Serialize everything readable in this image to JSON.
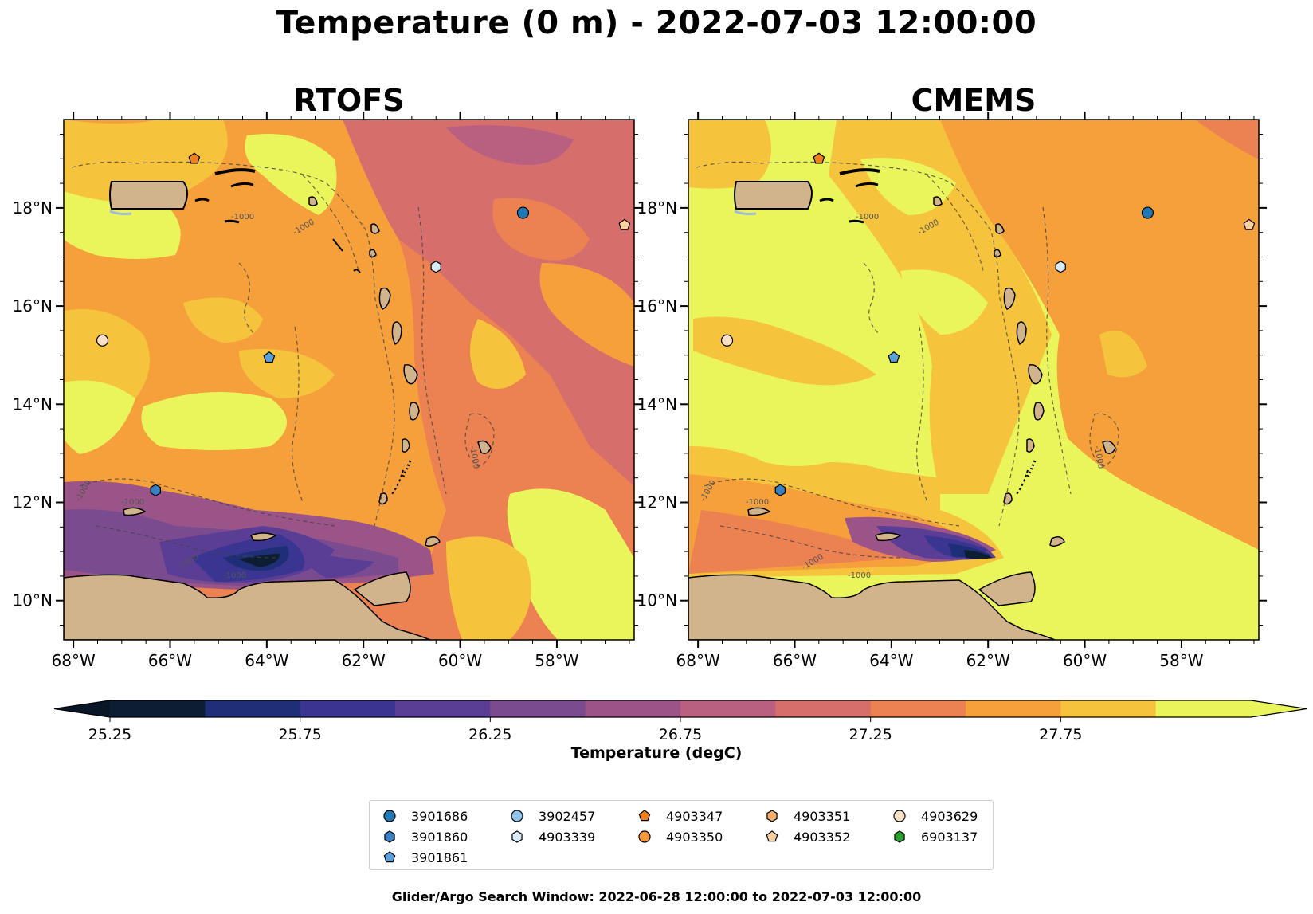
{
  "title": "Temperature (0 m) - 2022-07-03 12:00:00",
  "panels": [
    {
      "title": "RTOFS"
    },
    {
      "title": "CMEMS"
    }
  ],
  "axes": {
    "lon_ticks": [
      "68°W",
      "66°W",
      "64°W",
      "62°W",
      "60°W",
      "58°W"
    ],
    "lat_ticks": [
      "18°N",
      "16°N",
      "14°N",
      "12°N",
      "10°N"
    ],
    "lon_range": [
      -68.2,
      -56.4
    ],
    "lat_range": [
      9.2,
      19.8
    ]
  },
  "colorbar": {
    "label": "Temperature (degC)",
    "ticks": [
      "25.25",
      "25.75",
      "26.25",
      "26.75",
      "27.25",
      "27.75"
    ],
    "levels": [
      25.25,
      25.5,
      25.75,
      26.0,
      26.25,
      26.5,
      26.75,
      27.0,
      27.25,
      27.5,
      27.75,
      28.0
    ],
    "colors": [
      "#0d1e33",
      "#1f2f77",
      "#3a3591",
      "#5a3e96",
      "#7a4b8f",
      "#9a5487",
      "#b96080",
      "#d66f6c",
      "#ec8151",
      "#f6a03c",
      "#f6c43c",
      "#e9f55a"
    ],
    "extend_min_color": "#091627",
    "extend_max_color": "#e9f55a"
  },
  "contour_label": "-1000",
  "legend": {
    "items": [
      {
        "id": "3901686",
        "marker": "circle",
        "color": "#1f77b4",
        "lon": -58.7,
        "lat": 17.9
      },
      {
        "id": "3901860",
        "marker": "hexagon",
        "color": "#3a80c4",
        "lon": -66.3,
        "lat": 12.25
      },
      {
        "id": "3901861",
        "marker": "pentagon",
        "color": "#5aa0dc",
        "lon": -63.95,
        "lat": 14.95
      },
      {
        "id": "3902457",
        "marker": "circle",
        "color": "#8fc4ec",
        "lon": null,
        "lat": null
      },
      {
        "id": "4903339",
        "marker": "hexagon",
        "color": "#d6eaf8",
        "lon": -60.5,
        "lat": 16.8
      },
      {
        "id": "4903347",
        "marker": "pentagon",
        "color": "#f07f1e",
        "lon": -65.5,
        "lat": 19.0
      },
      {
        "id": "4903350",
        "marker": "circle",
        "color": "#f7983a",
        "lon": null,
        "lat": null
      },
      {
        "id": "4903351",
        "marker": "hexagon",
        "color": "#f5b070",
        "lon": null,
        "lat": null
      },
      {
        "id": "4903352",
        "marker": "pentagon",
        "color": "#fbcf9e",
        "lon": -56.6,
        "lat": 17.65
      },
      {
        "id": "4903629",
        "marker": "circle",
        "color": "#fbe0c8",
        "lon": -67.4,
        "lat": 15.3
      },
      {
        "id": "6903137",
        "marker": "hexagon",
        "color": "#2ca02c",
        "lon": null,
        "lat": null
      }
    ]
  },
  "footer": "Glider/Argo Search Window: 2022-06-28 12:00:00 to 2022-07-03 12:00:00"
}
